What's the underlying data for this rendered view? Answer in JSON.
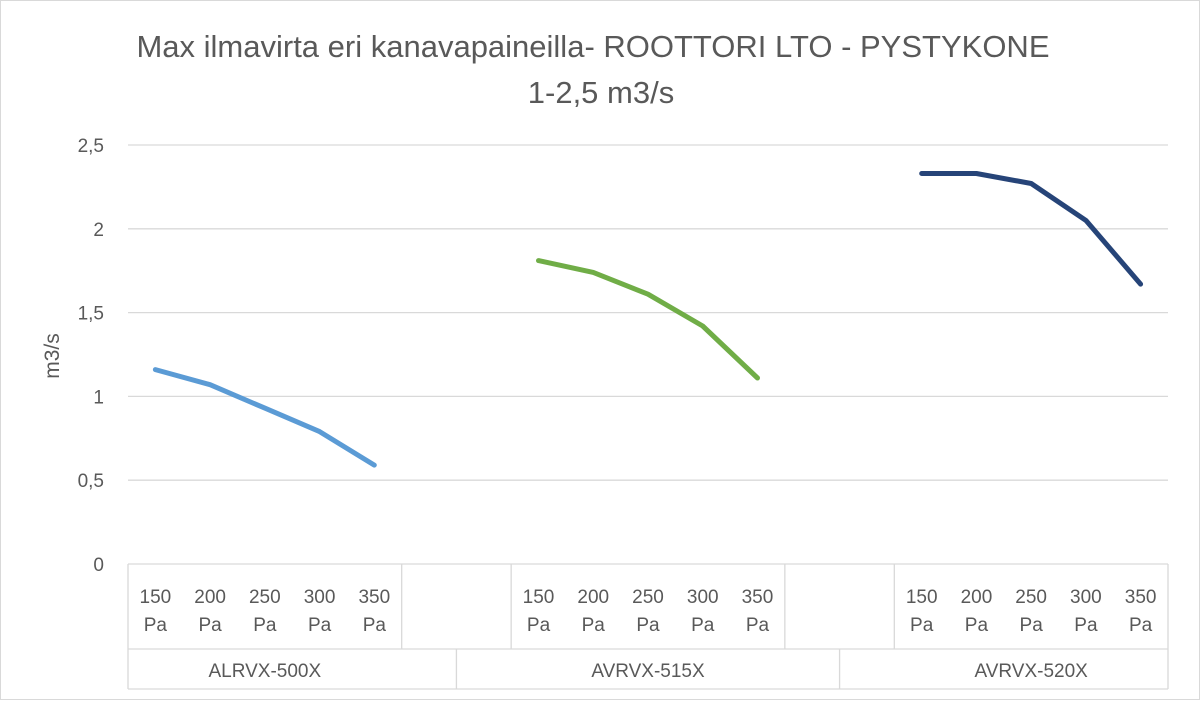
{
  "chart_data": {
    "type": "line",
    "title": "Max ilmavirta eri kanavapaineilla- ROOTTORI LTO - PYSTYKONE",
    "subtitle": "1-2,5 m3/s",
    "ylabel": "m3/s",
    "xlabel": "",
    "ylim": [
      0,
      2.5
    ],
    "yticks": [
      "0",
      "0,5",
      "1",
      "1,5",
      "2",
      "2,5"
    ],
    "grid": true,
    "legend": "none",
    "categories": [
      "150 Pa",
      "200 Pa",
      "250 Pa",
      "300 Pa",
      "350 Pa"
    ],
    "groups": [
      {
        "name": "ALRVX-500X",
        "color": "#5b9bd5",
        "values": [
          1.16,
          1.07,
          0.93,
          0.79,
          0.59
        ]
      },
      {
        "name": "AVRVX-515X",
        "color": "#70ad47",
        "values": [
          1.81,
          1.74,
          1.61,
          1.42,
          1.11
        ]
      },
      {
        "name": "AVRVX-520X",
        "color": "#264478",
        "values": [
          2.33,
          2.33,
          2.27,
          2.05,
          1.67
        ]
      }
    ]
  }
}
